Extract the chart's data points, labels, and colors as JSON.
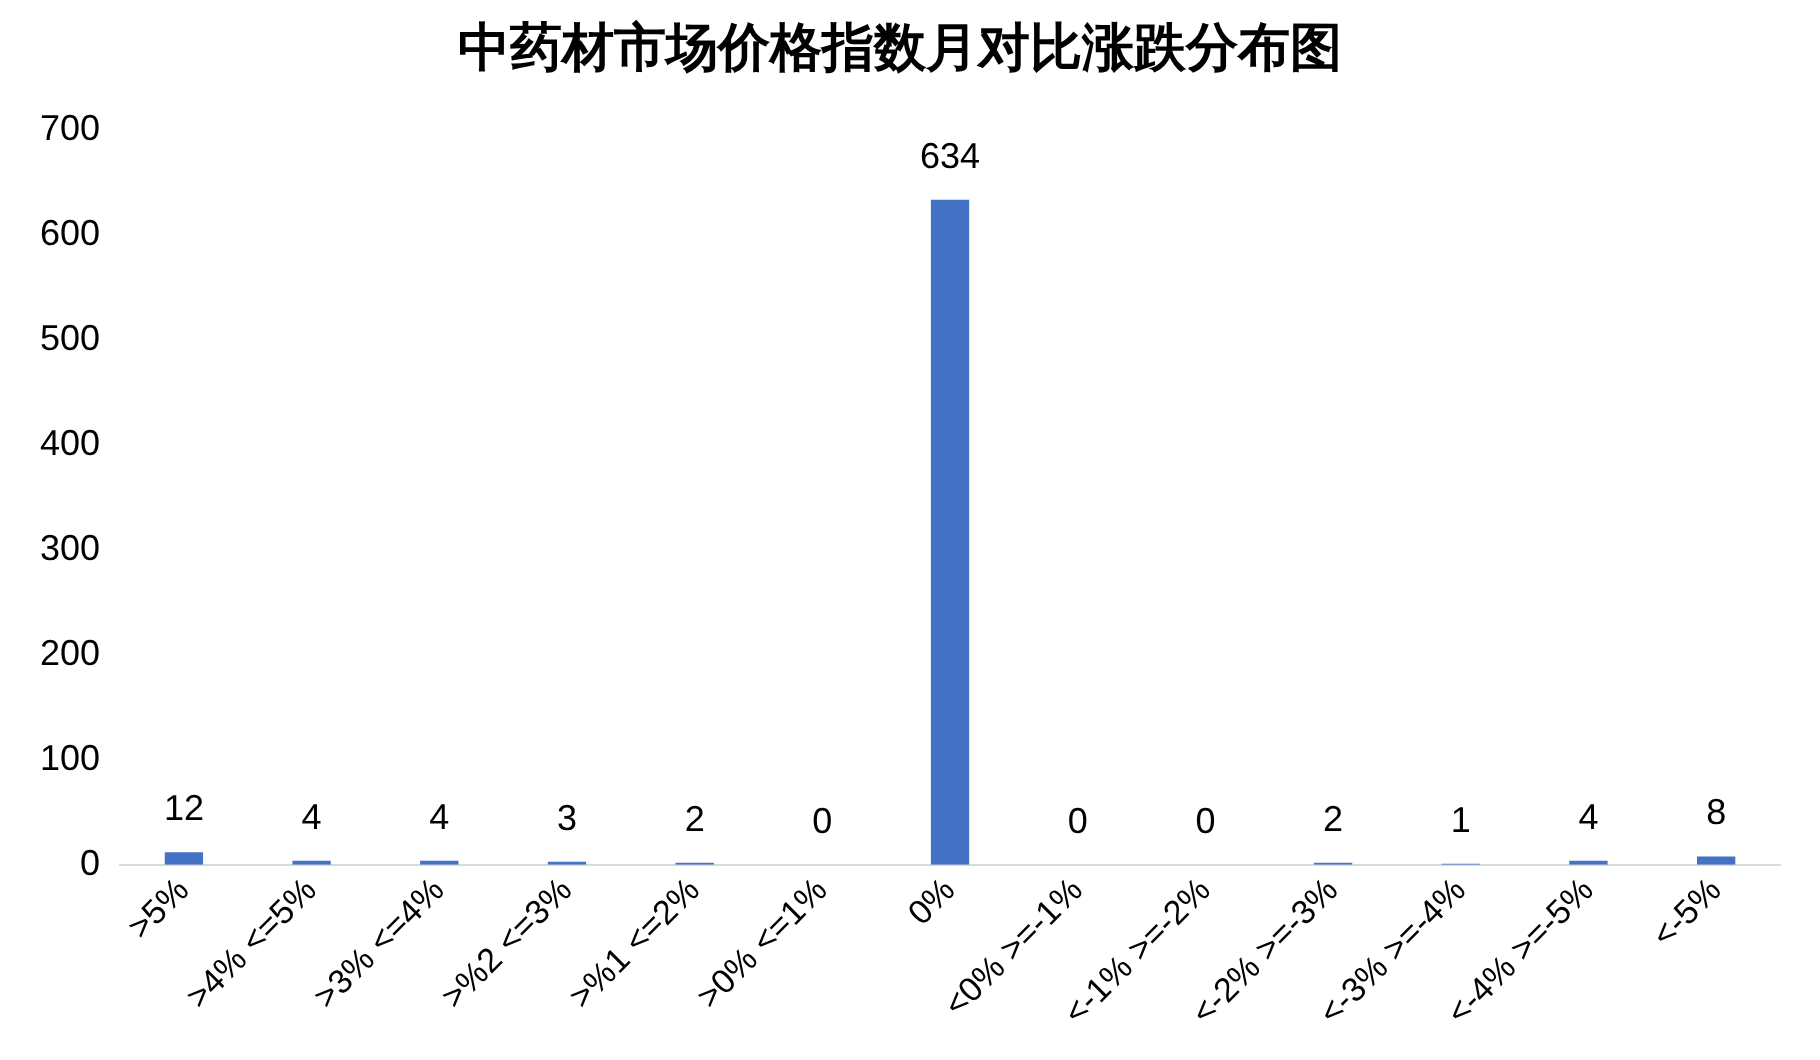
{
  "chart_data": {
    "type": "bar",
    "title": "中药材市场价格指数月对比涨跌分布图",
    "categories": [
      ">5%",
      ">4% <=5%",
      ">3% <=4%",
      ">%2 <=3%",
      ">%1 <=2%",
      ">0% <=1%",
      "0%",
      "<0% >=-1%",
      "<-1% >=-2%",
      "<-2% >=-3%",
      "<-3% >=-4%",
      "<-4% >=-5%",
      "<-5%"
    ],
    "values": [
      12,
      4,
      4,
      3,
      2,
      0,
      634,
      0,
      0,
      2,
      1,
      4,
      8
    ],
    "color": "#4472c4",
    "ylim": [
      0,
      700
    ],
    "yticks": [
      0,
      100,
      200,
      300,
      400,
      500,
      600,
      700
    ],
    "grid": false,
    "data_labels": true
  }
}
